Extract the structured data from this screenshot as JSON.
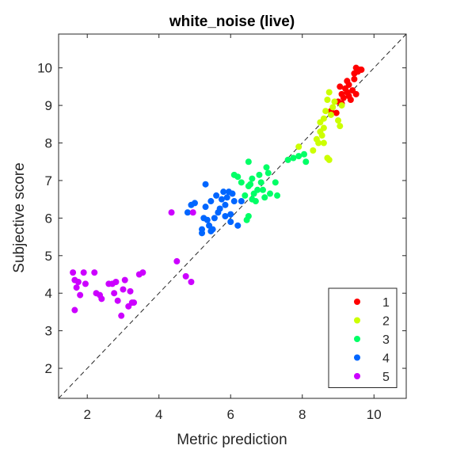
{
  "chart_data": {
    "type": "scatter",
    "title": "white_noise (live)",
    "xlabel": "Metric prediction",
    "ylabel": "Subjective score",
    "xlim": [
      1.2,
      10.9
    ],
    "ylim": [
      1.2,
      10.9
    ],
    "xticks": [
      2,
      4,
      6,
      8,
      10
    ],
    "yticks": [
      2,
      3,
      4,
      5,
      6,
      7,
      8,
      9,
      10
    ],
    "grid": false,
    "legend_position": "bottom-right",
    "reference_line": "y = x (dashed)",
    "series": [
      {
        "name": "1",
        "color": "#ff0000",
        "points": [
          [
            8.8,
            8.85
          ],
          [
            8.95,
            8.8
          ],
          [
            9.0,
            9.1
          ],
          [
            9.05,
            9.5
          ],
          [
            9.1,
            9.3
          ],
          [
            9.15,
            9.2
          ],
          [
            9.2,
            9.45
          ],
          [
            9.25,
            9.35
          ],
          [
            9.3,
            9.55
          ],
          [
            9.3,
            9.25
          ],
          [
            9.35,
            9.15
          ],
          [
            9.4,
            9.4
          ],
          [
            9.45,
            9.7
          ],
          [
            9.45,
            9.85
          ],
          [
            9.5,
            10.0
          ],
          [
            9.55,
            9.9
          ],
          [
            9.6,
            9.95
          ],
          [
            9.65,
            9.95
          ],
          [
            9.5,
            9.3
          ],
          [
            9.1,
            9.05
          ],
          [
            9.25,
            9.65
          ]
        ]
      },
      {
        "name": "2",
        "color": "#ccff00",
        "points": [
          [
            7.9,
            7.9
          ],
          [
            8.3,
            7.8
          ],
          [
            8.45,
            8.0
          ],
          [
            8.5,
            8.3
          ],
          [
            8.5,
            8.55
          ],
          [
            8.55,
            8.2
          ],
          [
            8.6,
            8.0
          ],
          [
            8.6,
            8.4
          ],
          [
            8.6,
            8.65
          ],
          [
            8.65,
            8.85
          ],
          [
            8.7,
            7.6
          ],
          [
            8.75,
            7.55
          ],
          [
            8.7,
            9.15
          ],
          [
            8.75,
            9.35
          ],
          [
            8.8,
            8.75
          ],
          [
            8.85,
            8.95
          ],
          [
            8.9,
            9.1
          ],
          [
            9.0,
            8.6
          ],
          [
            9.05,
            8.45
          ],
          [
            9.1,
            9.0
          ],
          [
            8.4,
            8.1
          ]
        ]
      },
      {
        "name": "3",
        "color": "#00ff66",
        "points": [
          [
            6.1,
            7.15
          ],
          [
            6.2,
            7.1
          ],
          [
            6.3,
            6.95
          ],
          [
            6.4,
            6.6
          ],
          [
            6.45,
            5.95
          ],
          [
            6.5,
            6.05
          ],
          [
            6.5,
            7.5
          ],
          [
            6.5,
            6.85
          ],
          [
            6.55,
            6.9
          ],
          [
            6.6,
            7.05
          ],
          [
            6.65,
            6.65
          ],
          [
            6.7,
            6.45
          ],
          [
            6.75,
            6.75
          ],
          [
            6.8,
            7.15
          ],
          [
            6.85,
            6.95
          ],
          [
            6.9,
            6.75
          ],
          [
            7.0,
            7.35
          ],
          [
            7.1,
            6.65
          ],
          [
            7.3,
            6.6
          ],
          [
            7.25,
            6.95
          ],
          [
            7.6,
            7.55
          ],
          [
            7.75,
            7.6
          ],
          [
            7.9,
            7.65
          ],
          [
            8.05,
            7.7
          ],
          [
            8.1,
            7.5
          ],
          [
            7.05,
            7.2
          ],
          [
            6.6,
            6.5
          ],
          [
            6.95,
            6.55
          ]
        ]
      },
      {
        "name": "4",
        "color": "#0066ff",
        "points": [
          [
            4.8,
            6.15
          ],
          [
            4.9,
            6.35
          ],
          [
            5.0,
            6.4
          ],
          [
            5.2,
            5.7
          ],
          [
            5.2,
            5.6
          ],
          [
            5.3,
            6.9
          ],
          [
            5.3,
            6.3
          ],
          [
            5.35,
            5.95
          ],
          [
            5.4,
            5.8
          ],
          [
            5.45,
            5.65
          ],
          [
            5.5,
            5.7
          ],
          [
            5.55,
            6.0
          ],
          [
            5.6,
            6.6
          ],
          [
            5.65,
            6.15
          ],
          [
            5.7,
            6.25
          ],
          [
            5.75,
            6.5
          ],
          [
            5.8,
            6.7
          ],
          [
            5.85,
            6.35
          ],
          [
            5.9,
            6.55
          ],
          [
            5.95,
            6.7
          ],
          [
            6.0,
            6.1
          ],
          [
            6.05,
            6.65
          ],
          [
            6.1,
            6.45
          ],
          [
            6.2,
            5.8
          ],
          [
            6.3,
            6.45
          ],
          [
            6.0,
            5.9
          ],
          [
            5.85,
            6.05
          ],
          [
            5.45,
            6.45
          ],
          [
            5.25,
            6.0
          ]
        ]
      },
      {
        "name": "5",
        "color": "#cc00ff",
        "points": [
          [
            1.6,
            4.55
          ],
          [
            1.65,
            4.35
          ],
          [
            1.65,
            3.55
          ],
          [
            1.7,
            4.15
          ],
          [
            1.75,
            4.3
          ],
          [
            1.8,
            3.95
          ],
          [
            1.9,
            4.55
          ],
          [
            1.95,
            4.25
          ],
          [
            2.2,
            4.55
          ],
          [
            2.25,
            4.0
          ],
          [
            2.35,
            3.95
          ],
          [
            2.4,
            3.85
          ],
          [
            2.6,
            4.25
          ],
          [
            2.7,
            4.25
          ],
          [
            2.75,
            4.0
          ],
          [
            2.8,
            4.3
          ],
          [
            2.85,
            3.8
          ],
          [
            2.95,
            3.4
          ],
          [
            3.0,
            4.1
          ],
          [
            3.05,
            4.35
          ],
          [
            3.15,
            3.65
          ],
          [
            3.25,
            3.75
          ],
          [
            3.3,
            3.75
          ],
          [
            3.45,
            4.5
          ],
          [
            3.55,
            4.55
          ],
          [
            4.35,
            6.15
          ],
          [
            4.5,
            4.85
          ],
          [
            4.75,
            4.45
          ],
          [
            4.9,
            4.3
          ],
          [
            4.95,
            6.15
          ],
          [
            3.2,
            4.05
          ]
        ]
      }
    ]
  }
}
